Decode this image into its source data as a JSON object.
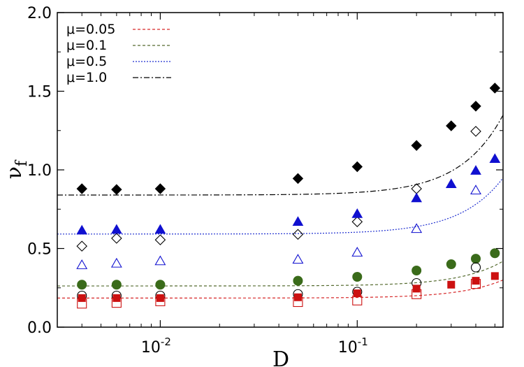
{
  "chart_data": {
    "type": "scatter",
    "title": "",
    "xlabel": "D",
    "ylabel": "ν",
    "ylabel_subscript": "f",
    "xscale": "log",
    "xlim": [
      0.003,
      0.55
    ],
    "ylim": [
      0.0,
      2.0
    ],
    "yticks": [
      {
        "value": 0.0,
        "label": "0.0"
      },
      {
        "value": 0.5,
        "label": "0.5"
      },
      {
        "value": 1.0,
        "label": "1.0"
      },
      {
        "value": 1.5,
        "label": "1.5"
      },
      {
        "value": 2.0,
        "label": "2.0"
      }
    ],
    "xticks": [
      {
        "value": 0.01,
        "base": "10",
        "exp": "-2"
      },
      {
        "value": 0.1,
        "base": "10",
        "exp": "-1"
      }
    ],
    "legend_position": "top-left",
    "fits": [
      {
        "name": "μ=0.05",
        "label": "μ=0.05",
        "color": "#d62728",
        "dash": "4,3",
        "a": 0.185,
        "b": 0.38
      },
      {
        "name": "μ=0.1",
        "label": "μ=0.1",
        "color": "#556b2f",
        "dash": "4,3",
        "a": 0.262,
        "b": 0.52
      },
      {
        "name": "μ=0.5",
        "label": "μ=0.5",
        "color": "#1f2fd0",
        "dash": "2,2",
        "a": 0.592,
        "b": 1.18
      },
      {
        "name": "μ=1.0",
        "label": "μ=1.0",
        "color": "#000000",
        "dash": "8,3,2,3",
        "a": 0.84,
        "b": 1.68
      }
    ],
    "series": [
      {
        "name": "μ=1.0 filled",
        "marker": "diamond",
        "filled": true,
        "color": "#000000",
        "points": [
          [
            0.004,
            0.88
          ],
          [
            0.006,
            0.875
          ],
          [
            0.01,
            0.88
          ],
          [
            0.05,
            0.945
          ],
          [
            0.1,
            1.02
          ],
          [
            0.2,
            1.155
          ],
          [
            0.3,
            1.28
          ],
          [
            0.4,
            1.405
          ],
          [
            0.5,
            1.52
          ]
        ]
      },
      {
        "name": "μ=1.0 open",
        "marker": "diamond",
        "filled": false,
        "color": "#000000",
        "points": [
          [
            0.004,
            0.515
          ],
          [
            0.006,
            0.565
          ],
          [
            0.01,
            0.555
          ],
          [
            0.05,
            0.59
          ],
          [
            0.1,
            0.67
          ],
          [
            0.2,
            0.88
          ],
          [
            0.4,
            1.245
          ]
        ]
      },
      {
        "name": "μ=0.5 filled",
        "marker": "triangle",
        "filled": true,
        "color": "#1010d0",
        "points": [
          [
            0.004,
            0.615
          ],
          [
            0.006,
            0.62
          ],
          [
            0.01,
            0.62
          ],
          [
            0.05,
            0.67
          ],
          [
            0.1,
            0.72
          ],
          [
            0.2,
            0.82
          ],
          [
            0.3,
            0.91
          ],
          [
            0.4,
            0.995
          ],
          [
            0.5,
            1.07
          ]
        ]
      },
      {
        "name": "μ=0.5 open",
        "marker": "triangle",
        "filled": false,
        "color": "#1010d0",
        "points": [
          [
            0.004,
            0.395
          ],
          [
            0.006,
            0.405
          ],
          [
            0.01,
            0.42
          ],
          [
            0.05,
            0.43
          ],
          [
            0.1,
            0.475
          ],
          [
            0.2,
            0.625
          ],
          [
            0.4,
            0.87
          ]
        ]
      },
      {
        "name": "μ=0.1 filled",
        "marker": "circle",
        "filled": true,
        "color": "#3a6b1a",
        "points": [
          [
            0.004,
            0.27
          ],
          [
            0.006,
            0.27
          ],
          [
            0.01,
            0.27
          ],
          [
            0.05,
            0.295
          ],
          [
            0.1,
            0.32
          ],
          [
            0.2,
            0.36
          ],
          [
            0.3,
            0.4
          ],
          [
            0.4,
            0.435
          ],
          [
            0.5,
            0.47
          ]
        ]
      },
      {
        "name": "μ=0.1 open",
        "marker": "circle",
        "filled": false,
        "color": "#000000",
        "points": [
          [
            0.004,
            0.2
          ],
          [
            0.006,
            0.2
          ],
          [
            0.01,
            0.2
          ],
          [
            0.05,
            0.21
          ],
          [
            0.1,
            0.225
          ],
          [
            0.2,
            0.28
          ],
          [
            0.4,
            0.38
          ]
        ]
      },
      {
        "name": "μ=0.05 filled",
        "marker": "square",
        "filled": true,
        "color": "#cc1111",
        "points": [
          [
            0.004,
            0.185
          ],
          [
            0.006,
            0.185
          ],
          [
            0.01,
            0.185
          ],
          [
            0.05,
            0.19
          ],
          [
            0.1,
            0.215
          ],
          [
            0.2,
            0.245
          ],
          [
            0.3,
            0.27
          ],
          [
            0.4,
            0.295
          ],
          [
            0.5,
            0.325
          ]
        ]
      },
      {
        "name": "μ=0.05 open",
        "marker": "square",
        "filled": false,
        "color": "#cc1111",
        "points": [
          [
            0.004,
            0.15
          ],
          [
            0.006,
            0.155
          ],
          [
            0.01,
            0.165
          ],
          [
            0.05,
            0.16
          ],
          [
            0.1,
            0.17
          ],
          [
            0.2,
            0.21
          ],
          [
            0.4,
            0.275
          ]
        ]
      }
    ]
  }
}
